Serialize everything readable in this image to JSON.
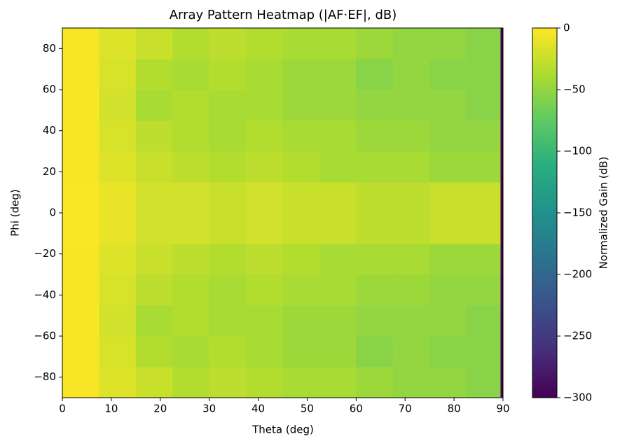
{
  "chart_data": {
    "type": "heatmap",
    "title": "Array Pattern Heatmap (|AF·EF|, dB)",
    "x_label": "Theta (deg)",
    "y_label": "Phi (deg)",
    "colorbar_label": "Normalized Gain (dB)",
    "colormap": "viridis",
    "x_edges": [
      0,
      7.5,
      15,
      22.5,
      30,
      37.5,
      45,
      52.5,
      60,
      67.5,
      75,
      82.5,
      89.5,
      90
    ],
    "y_edges": [
      -90,
      -75,
      -60,
      -45,
      -30,
      -15,
      0,
      15,
      30,
      45,
      60,
      75,
      90
    ],
    "values": [
      [
        -3,
        -15,
        -25,
        -35,
        -30,
        -35,
        -40,
        -40,
        -45,
        -50,
        -50,
        -55,
        -300
      ],
      [
        -3,
        -18,
        -35,
        -40,
        -35,
        -40,
        -45,
        -45,
        -55,
        -50,
        -55,
        -55,
        -300
      ],
      [
        -3,
        -20,
        -40,
        -35,
        -40,
        -40,
        -45,
        -45,
        -50,
        -50,
        -50,
        -55,
        -300
      ],
      [
        -3,
        -18,
        -30,
        -35,
        -40,
        -35,
        -40,
        -40,
        -45,
        -45,
        -50,
        -50,
        -300
      ],
      [
        -3,
        -15,
        -25,
        -30,
        -35,
        -30,
        -35,
        -40,
        -40,
        -40,
        -45,
        -45,
        -300
      ],
      [
        -2,
        -10,
        -20,
        -20,
        -25,
        -20,
        -25,
        -25,
        -30,
        -30,
        -25,
        -25,
        -300
      ],
      [
        -2,
        -10,
        -20,
        -20,
        -25,
        -20,
        -25,
        -25,
        -30,
        -30,
        -25,
        -25,
        -300
      ],
      [
        -3,
        -15,
        -25,
        -30,
        -35,
        -30,
        -35,
        -40,
        -40,
        -40,
        -45,
        -45,
        -300
      ],
      [
        -3,
        -18,
        -30,
        -35,
        -40,
        -35,
        -40,
        -40,
        -45,
        -45,
        -50,
        -50,
        -300
      ],
      [
        -3,
        -20,
        -40,
        -35,
        -40,
        -40,
        -45,
        -45,
        -50,
        -50,
        -50,
        -55,
        -300
      ],
      [
        -3,
        -18,
        -35,
        -40,
        -35,
        -40,
        -45,
        -45,
        -55,
        -50,
        -55,
        -55,
        -300
      ],
      [
        -3,
        -15,
        -25,
        -35,
        -30,
        -35,
        -40,
        -40,
        -45,
        -50,
        -50,
        -55,
        -300
      ]
    ],
    "xlim": [
      0,
      90
    ],
    "ylim": [
      -90,
      90
    ],
    "clim": [
      -300,
      0
    ],
    "xticks": [
      0,
      10,
      20,
      30,
      40,
      50,
      60,
      70,
      80,
      90
    ],
    "yticks": [
      {
        "value": -80,
        "label": "−80"
      },
      {
        "value": -60,
        "label": "−60"
      },
      {
        "value": -40,
        "label": "−40"
      },
      {
        "value": -20,
        "label": "−20"
      },
      0,
      20,
      40,
      60,
      80
    ],
    "cticks": [
      0,
      {
        "value": -50,
        "label": "−50"
      },
      {
        "value": -100,
        "label": "−100"
      },
      {
        "value": -150,
        "label": "−150"
      },
      {
        "value": -200,
        "label": "−200"
      },
      {
        "value": -250,
        "label": "−250"
      },
      {
        "value": -300,
        "label": "−300"
      }
    ]
  }
}
